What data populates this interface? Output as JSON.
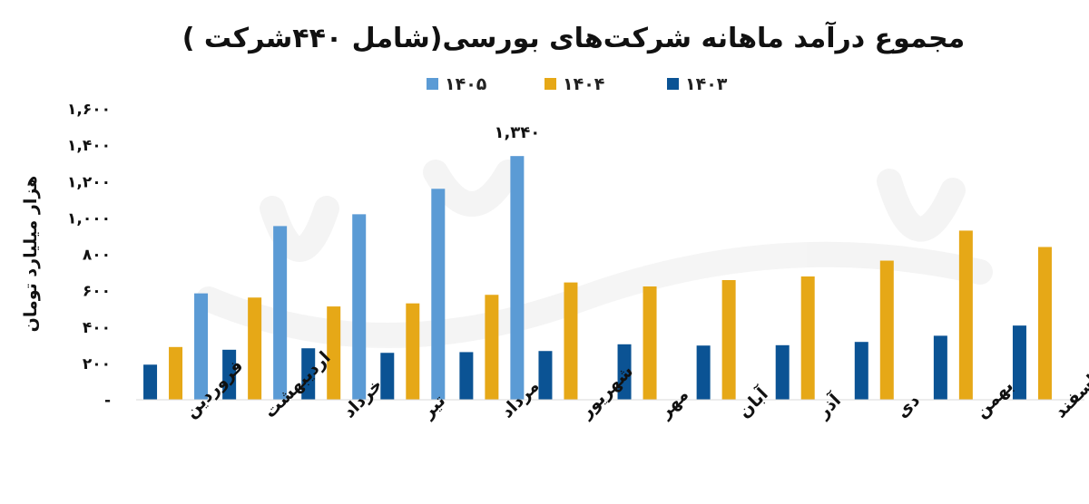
{
  "chart_data": {
    "type": "bar",
    "title": "مجموع درآمد ماهانه شرکت‌های بورسی(شامل ۴۴۰شرکت )",
    "xlabel": "",
    "ylabel": "هزار میلیارد تومان",
    "ylim": [
      0,
      1600
    ],
    "yticks": [
      0,
      200,
      400,
      600,
      800,
      1000,
      1200,
      1400,
      1600
    ],
    "ytick_labels": [
      "-",
      "۲۰۰",
      "۴۰۰",
      "۶۰۰",
      "۸۰۰",
      "۱,۰۰۰",
      "۱,۲۰۰",
      "۱,۴۰۰",
      "۱,۶۰۰"
    ],
    "categories": [
      "فروردین",
      "اردیبهشت",
      "خرداد",
      "تیر",
      "مرداد",
      "شهریور",
      "مهر",
      "آبان",
      "آذر",
      "دی",
      "بهمن",
      "اسفند"
    ],
    "series": [
      {
        "name": "۱۴۰۳",
        "color": "#0B5394",
        "values": [
          193,
          275,
          283,
          258,
          262,
          268,
          305,
          298,
          300,
          318,
          352,
          408
        ]
      },
      {
        "name": "۱۴۰۴",
        "color": "#E6A817",
        "values": [
          290,
          562,
          513,
          530,
          577,
          645,
          623,
          658,
          678,
          765,
          930,
          840
        ]
      },
      {
        "name": "۱۴۰۵",
        "color": "#5B9BD5",
        "values": [
          585,
          955,
          1020,
          1160,
          1340,
          null,
          null,
          null,
          null,
          null,
          null,
          null
        ]
      }
    ],
    "data_labels": [
      {
        "series": 2,
        "index": 4,
        "text": "۱,۳۴۰"
      }
    ],
    "legend_position": "top",
    "grid": false
  }
}
